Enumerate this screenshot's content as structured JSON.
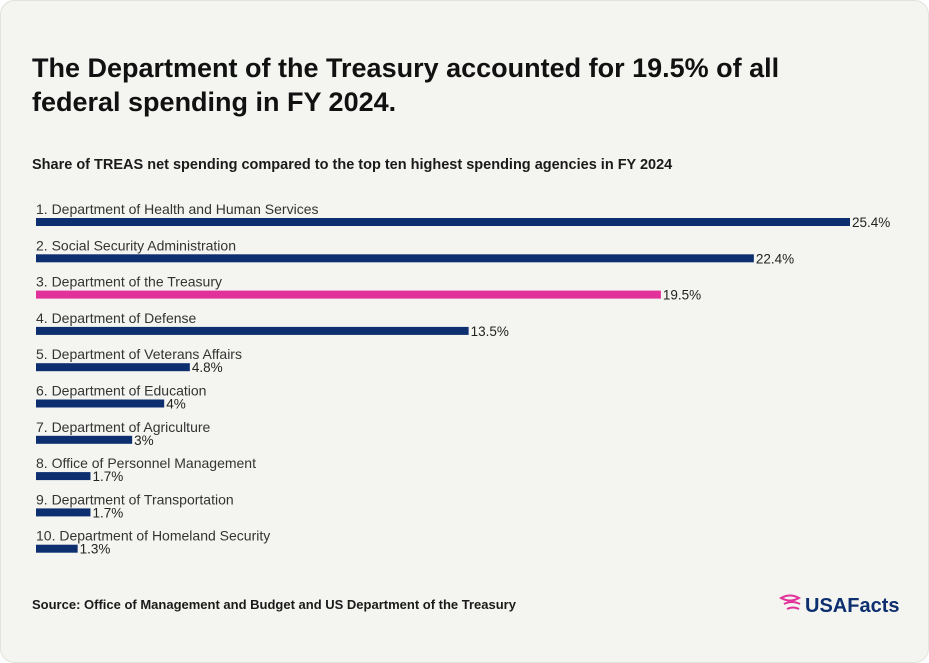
{
  "chart_data": {
    "type": "hbar",
    "title": "The Department of the Treasury accounted for 19.5% of all federal spending in FY 2024.",
    "subtitle": "Share of TREAS net spending compared to the top ten highest spending agencies in FY 2024",
    "categories": [
      "1. Department of Health and Human Services",
      "2. Social Security Administration",
      "3. Department of the Treasury",
      "4. Department of Defense",
      "5. Department of Veterans Affairs",
      "6. Department of Education",
      "7. Department of Agriculture",
      "8. Office of Personnel Management",
      "9. Department of Transportation",
      "10. Department of Homeland Security"
    ],
    "values": [
      25.4,
      22.4,
      19.5,
      13.5,
      4.8,
      4,
      3,
      1.7,
      1.7,
      1.3
    ],
    "value_labels": [
      "25.4%",
      "22.4%",
      "19.5%",
      "13.5%",
      "4.8%",
      "4%",
      "3%",
      "1.7%",
      "1.7%",
      "1.3%"
    ],
    "colors": [
      "#0d2f6f",
      "#0d2f6f",
      "#e2319a",
      "#0d2f6f",
      "#0d2f6f",
      "#0d2f6f",
      "#0d2f6f",
      "#0d2f6f",
      "#0d2f6f",
      "#0d2f6f"
    ],
    "source": "Source: Office of Management and Budget and US Department of the Treasury"
  },
  "branding": {
    "logo_text": "USAFacts"
  }
}
